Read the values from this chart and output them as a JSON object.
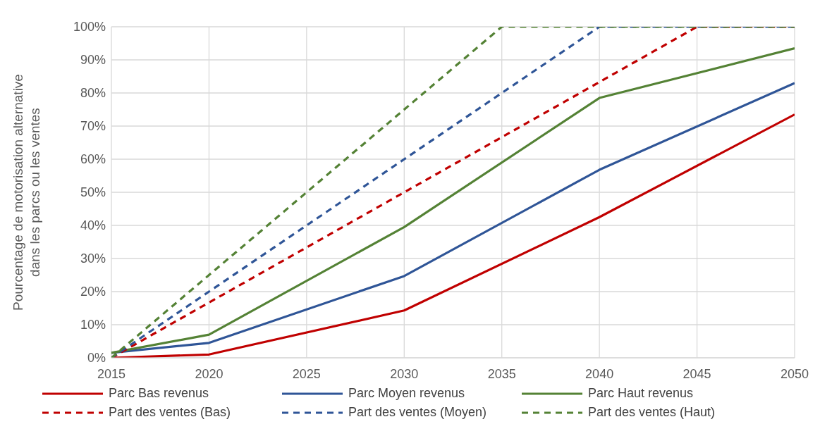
{
  "chart_data": {
    "type": "line",
    "ylabel": "Pourcentage de motorisation alternative\ndans les parcs ou les ventes",
    "xlim": [
      2015,
      2050
    ],
    "xticks": [
      2015,
      2020,
      2025,
      2030,
      2035,
      2040,
      2045,
      2050
    ],
    "ylim": [
      0,
      100
    ],
    "yticks": [
      {
        "value": 0,
        "label": "0%"
      },
      {
        "value": 10,
        "label": "10%"
      },
      {
        "value": 20,
        "label": "20%"
      },
      {
        "value": 30,
        "label": "30%"
      },
      {
        "value": 40,
        "label": "40%"
      },
      {
        "value": 50,
        "label": "50%"
      },
      {
        "value": 60,
        "label": "60%"
      },
      {
        "value": 70,
        "label": "70%"
      },
      {
        "value": 80,
        "label": "80%"
      },
      {
        "value": 90,
        "label": "90%"
      },
      {
        "value": 100,
        "label": "100%"
      }
    ],
    "grid": true,
    "legend": "bottom",
    "marker": "none",
    "series": [
      {
        "name": "Parc Bas revenus",
        "color": "#c00000",
        "line_style": "solid",
        "x": [
          2015,
          2020,
          2030,
          2040,
          2050
        ],
        "values": [
          0,
          1,
          14.3,
          42.5,
          73.5
        ]
      },
      {
        "name": "Parc Moyen revenus",
        "color": "#2f5597",
        "line_style": "solid",
        "x": [
          2015,
          2020,
          2030,
          2040,
          2050
        ],
        "values": [
          1.5,
          4.5,
          24.7,
          56.8,
          83
        ]
      },
      {
        "name": "Parc Haut revenus",
        "color": "#548235",
        "line_style": "solid",
        "x": [
          2015,
          2020,
          2030,
          2040,
          2050
        ],
        "values": [
          1.5,
          7,
          39.5,
          78.5,
          93.5
        ]
      },
      {
        "name": "Part des ventes (Bas)",
        "color": "#c00000",
        "line_style": "dashed",
        "x": [
          2015,
          2020,
          2030,
          2040,
          2045,
          2050
        ],
        "values": [
          0,
          16.7,
          50,
          83.3,
          100,
          100
        ]
      },
      {
        "name": "Part des ventes (Moyen)",
        "color": "#2f5597",
        "line_style": "dashed",
        "x": [
          2015,
          2020,
          2030,
          2040,
          2050
        ],
        "values": [
          0,
          20,
          60,
          100,
          100
        ]
      },
      {
        "name": "Part des ventes (Haut)",
        "color": "#548235",
        "line_style": "dashed",
        "x": [
          2015,
          2020,
          2030,
          2035,
          2050
        ],
        "values": [
          0,
          25,
          75,
          100,
          100
        ]
      }
    ]
  }
}
